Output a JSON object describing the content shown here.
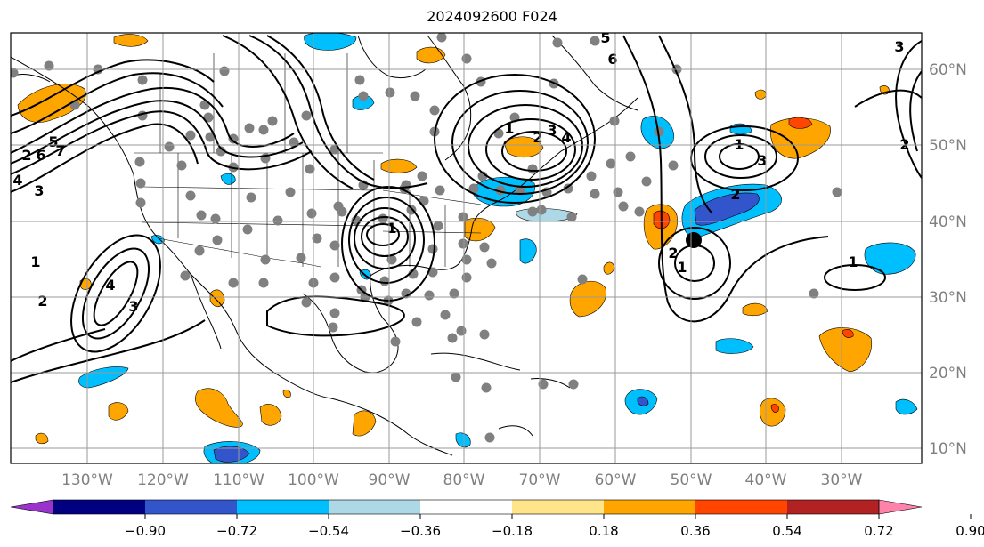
{
  "title": "2024092600 F024",
  "map": {
    "lon_labels": [
      "130°W",
      "120°W",
      "110°W",
      "100°W",
      "90°W",
      "80°W",
      "70°W",
      "60°W",
      "50°W",
      "40°W",
      "30°W"
    ],
    "lat_labels": [
      "60°N",
      "50°N",
      "40°N",
      "30°N",
      "20°N",
      "10°N"
    ],
    "label_color": "#808080",
    "contour_labels": [
      "1",
      "2",
      "3",
      "4",
      "5",
      "6",
      "7",
      "1",
      "2",
      "3",
      "4",
      "1",
      "2",
      "3",
      "4",
      "5",
      "6",
      "1",
      "2",
      "3",
      "1",
      "2",
      "1",
      "2",
      "3"
    ],
    "marker": "black-circle-marker"
  },
  "colorbar": {
    "colors": [
      "#9933CC",
      "#000080",
      "#3355CC",
      "#00BFFF",
      "#ADD8E6",
      "#FFFFFF",
      "#FFE58A",
      "#FFA500",
      "#FF4500",
      "#B22222",
      "#FF82AB"
    ],
    "tick_labels": [
      "−0.90",
      "−0.72",
      "−0.54",
      "−0.36",
      "−0.18",
      "0.18",
      "0.36",
      "0.54",
      "0.72",
      "0.90"
    ]
  }
}
